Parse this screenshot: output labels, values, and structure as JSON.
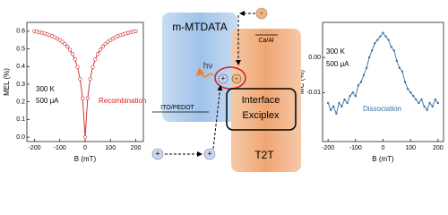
{
  "chart_data": [
    {
      "type": "line",
      "x_label": "B (mT)",
      "y_label": "MEL (%)",
      "x": [
        -200,
        -190,
        -180,
        -170,
        -160,
        -150,
        -140,
        -130,
        -120,
        -110,
        -100,
        -90,
        -80,
        -70,
        -60,
        -50,
        -40,
        -30,
        -20,
        -10,
        0,
        10,
        20,
        30,
        40,
        50,
        60,
        70,
        80,
        90,
        100,
        110,
        120,
        130,
        140,
        150,
        160,
        170,
        180,
        190,
        200
      ],
      "series": [
        {
          "color": "#d42020",
          "values": [
            0.6,
            0.597,
            0.594,
            0.591,
            0.587,
            0.582,
            0.578,
            0.572,
            0.566,
            0.558,
            0.55,
            0.54,
            0.528,
            0.513,
            0.495,
            0.471,
            0.44,
            0.396,
            0.33,
            0.22,
            0,
            0.22,
            0.33,
            0.396,
            0.44,
            0.471,
            0.495,
            0.513,
            0.528,
            0.54,
            0.55,
            0.558,
            0.566,
            0.572,
            0.578,
            0.582,
            0.587,
            0.591,
            0.594,
            0.597,
            0.6
          ]
        }
      ],
      "marker": true,
      "xlim": [
        -230,
        230
      ],
      "xticks": [
        -200,
        -100,
        0,
        100,
        200
      ],
      "ylim": [
        -0.025,
        0.65
      ],
      "yticks": [
        {
          "value": 0,
          "label": "0.0"
        },
        0.1,
        0.2,
        0.3,
        0.4,
        0.5,
        0.6
      ],
      "annotations": [
        {
          "text": "300 K",
          "color": "#000000"
        },
        {
          "text": "500 μA",
          "color": "#000000"
        },
        {
          "text": "Recombination",
          "color": "#d42020"
        }
      ]
    },
    {
      "type": "line",
      "x_label": "B (mT)",
      "y_label": "MC (%)",
      "x": [
        -200,
        -190,
        -180,
        -170,
        -160,
        -150,
        -140,
        -130,
        -120,
        -110,
        -100,
        -90,
        -80,
        -70,
        -60,
        -50,
        -40,
        -30,
        -20,
        -10,
        0,
        10,
        20,
        30,
        40,
        50,
        60,
        70,
        80,
        90,
        100,
        110,
        120,
        130,
        140,
        150,
        160,
        170,
        180,
        190,
        200
      ],
      "series": [
        {
          "color": "#3a6ea5",
          "values": [
            -0.013,
            -0.015,
            -0.014,
            -0.016,
            -0.013,
            -0.014,
            -0.012,
            -0.013,
            -0.011,
            -0.01,
            -0.011,
            -0.008,
            -0.007,
            -0.005,
            -0.003,
            0,
            0.002,
            0.004,
            0.005,
            0.006,
            0.007,
            0.006,
            0.005,
            0.003,
            0.002,
            -0.001,
            -0.003,
            -0.004,
            -0.007,
            -0.009,
            -0.01,
            -0.011,
            -0.012,
            -0.013,
            -0.012,
            -0.014,
            -0.015,
            -0.013,
            -0.014,
            -0.012,
            -0.013
          ]
        }
      ],
      "marker": false,
      "xlim": [
        -220,
        220
      ],
      "xticks": [
        -200,
        -100,
        0,
        100,
        200
      ],
      "ylim": [
        -0.024,
        0.01
      ],
      "yticks": [
        {
          "value": 0,
          "label": "0.00"
        },
        -0.01
      ],
      "annotations": [
        {
          "text": "300 K",
          "color": "#000000"
        },
        {
          "text": "500 μA",
          "color": "#000000"
        },
        {
          "text": "Dissociation",
          "color": "#3a6ea5"
        }
      ]
    }
  ],
  "diagram": {
    "donor": "m-MTDATA",
    "acceptor": "T2T",
    "photon": "hν",
    "exciplex_line1": "Interface",
    "exciplex_line2": "Exciplex",
    "anode": "ITO/PEDOT",
    "cathode": "Ca/Al",
    "hole": "+",
    "electron": "-"
  }
}
